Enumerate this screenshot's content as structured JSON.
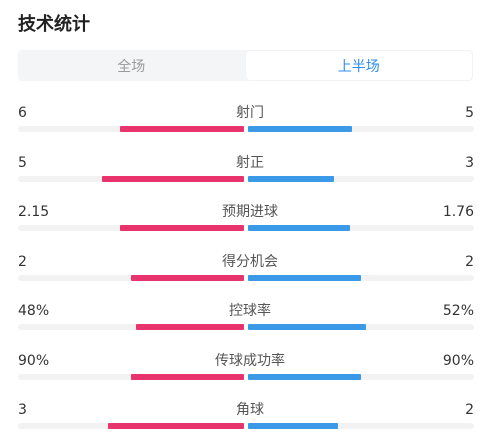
{
  "title": "技术统计",
  "tabs": [
    {
      "label": "全场",
      "active": false
    },
    {
      "label": "上半场",
      "active": true
    }
  ],
  "colors": {
    "home": "#e8336d",
    "away": "#3a9ae8",
    "track": "#f2f2f2",
    "active_tab": "#2d8cf0"
  },
  "stats": [
    {
      "label": "射门",
      "home": "6",
      "away": "5",
      "home_share": 0.55,
      "away_share": 0.46
    },
    {
      "label": "射正",
      "home": "5",
      "away": "3",
      "home_share": 0.63,
      "away_share": 0.38
    },
    {
      "label": "预期进球",
      "home": "2.15",
      "away": "1.76",
      "home_share": 0.55,
      "away_share": 0.45
    },
    {
      "label": "得分机会",
      "home": "2",
      "away": "2",
      "home_share": 0.5,
      "away_share": 0.5
    },
    {
      "label": "控球率",
      "home": "48%",
      "away": "52%",
      "home_share": 0.48,
      "away_share": 0.52
    },
    {
      "label": "传球成功率",
      "home": "90%",
      "away": "90%",
      "home_share": 0.5,
      "away_share": 0.5
    },
    {
      "label": "角球",
      "home": "3",
      "away": "2",
      "home_share": 0.6,
      "away_share": 0.4
    }
  ]
}
